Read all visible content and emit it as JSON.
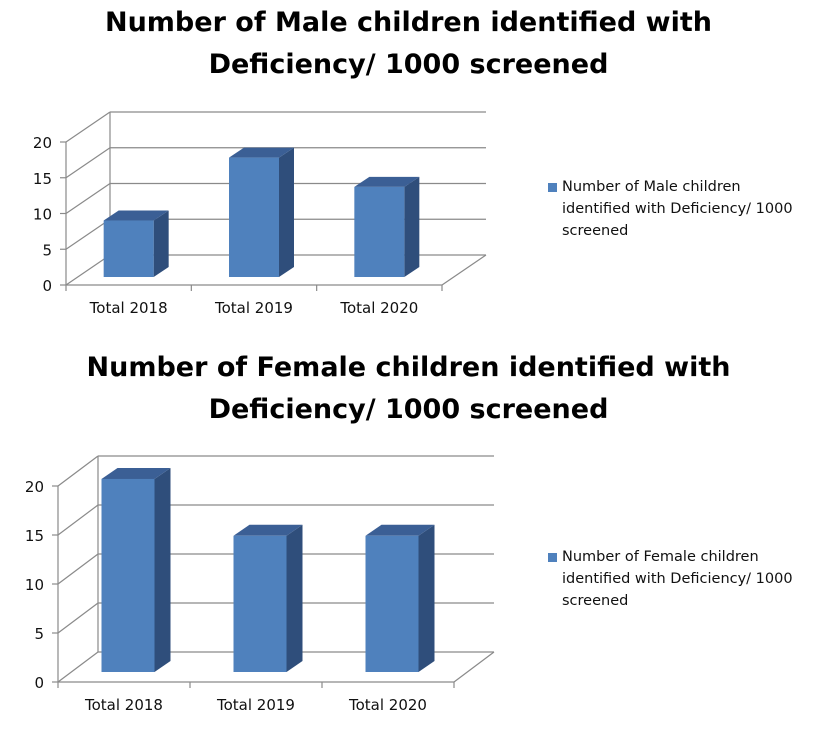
{
  "colors": {
    "bar_front": "#4f81bd",
    "bar_side": "#2f4e7b",
    "bar_top": "#3b5f95",
    "grid": "#8a8a8a"
  },
  "chart_data": [
    {
      "type": "bar",
      "title": "Number of Male children identified with Deficiency/ 1000 screened",
      "title_lines": [
        "Number of Male children identified with",
        "Deficiency/ 1000 screened"
      ],
      "categories": [
        "Total 2018",
        "Total 2019",
        "Total 2020"
      ],
      "series": [
        {
          "name": "Number of Male children identified with Deficiency/ 1000 screened",
          "values": [
            7.9,
            16.7,
            12.6
          ]
        }
      ],
      "legend_lines": [
        "Number of Male children",
        "identified with Deficiency/ 1000",
        "screened"
      ],
      "yticks": [
        "0",
        "5",
        "10",
        "15",
        "20"
      ],
      "ylim": [
        0,
        20
      ],
      "grid": true,
      "legend": "right"
    },
    {
      "type": "bar",
      "title": "Number of Female children identified with Deficiency/ 1000 screened",
      "title_lines": [
        "Number of Female children identified with",
        "Deficiency/ 1000 screened"
      ],
      "categories": [
        "Total 2018",
        "Total 2019",
        "Total 2020"
      ],
      "series": [
        {
          "name": "Number of Female children identified with Deficiency/ 1000 screened",
          "values": [
            19.7,
            13.9,
            13.9
          ]
        }
      ],
      "legend_lines": [
        "Number of Female children",
        "identified with Deficiency/ 1000",
        "screened"
      ],
      "yticks": [
        "0",
        "5",
        "10",
        "15",
        "20"
      ],
      "ylim": [
        0,
        20
      ],
      "grid": true,
      "legend": "right"
    }
  ]
}
